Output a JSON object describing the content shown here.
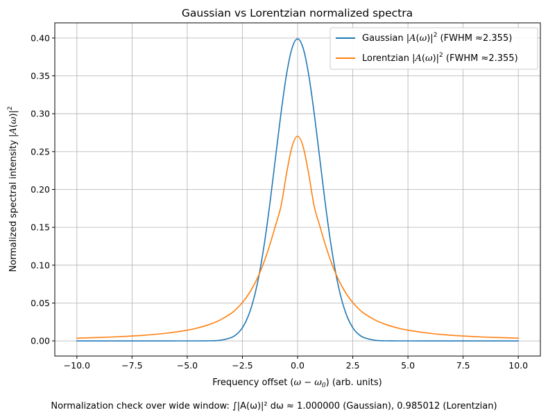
{
  "chart_data": {
    "type": "line",
    "title": "Gaussian vs Lorentzian normalized spectra",
    "xlabel_parts": [
      "Frequency offset (",
      "ω − ω",
      "0",
      ") (arb. units)"
    ],
    "ylabel_parts": [
      "Normalized spectral intensity |",
      "A",
      "(",
      "ω",
      ")|",
      "2"
    ],
    "xlim": [
      -11.0,
      11.0
    ],
    "ylim": [
      -0.02,
      0.42
    ],
    "xticks": [
      -10.0,
      -7.5,
      -5.0,
      -2.5,
      0.0,
      2.5,
      5.0,
      7.5,
      10.0
    ],
    "xtick_labels": [
      "−10.0",
      "−7.5",
      "−5.0",
      "−2.5",
      "0.0",
      "2.5",
      "5.0",
      "7.5",
      "10.0"
    ],
    "yticks": [
      0.0,
      0.05,
      0.1,
      0.15,
      0.2,
      0.25,
      0.3,
      0.35,
      0.4
    ],
    "ytick_labels": [
      "0.00",
      "0.05",
      "0.10",
      "0.15",
      "0.20",
      "0.25",
      "0.30",
      "0.35",
      "0.40"
    ],
    "grid": true,
    "legend_position": "top-right",
    "x": [
      -10,
      -9,
      -8,
      -7,
      -6,
      -5,
      -4.5,
      -4,
      -3.5,
      -3,
      -2.75,
      -2.5,
      -2.25,
      -2,
      -1.75,
      -1.5,
      -1.25,
      -1,
      -0.75,
      -0.5,
      -0.25,
      0,
      0.25,
      0.5,
      0.75,
      1,
      1.25,
      1.5,
      1.75,
      2,
      2.25,
      2.5,
      2.75,
      3,
      3.5,
      4,
      4.5,
      5,
      6,
      7,
      8,
      9,
      10
    ],
    "series": [
      {
        "name_parts": [
          "Gaussian |",
          "A",
          "(",
          "ω",
          ")|",
          "2",
          " (FWHM ",
          "≈",
          "2.355)"
        ],
        "color": "#1f77b4",
        "values": [
          0,
          0,
          0,
          0,
          0,
          1.5e-06,
          1.6e-05,
          0.000134,
          0.00087,
          0.00443,
          0.0091,
          0.0175,
          0.0317,
          0.054,
          0.0863,
          0.1295,
          0.1826,
          0.242,
          0.3011,
          0.3521,
          0.3867,
          0.3989,
          0.3867,
          0.3521,
          0.3011,
          0.242,
          0.1826,
          0.1295,
          0.0863,
          0.054,
          0.0317,
          0.0175,
          0.0091,
          0.00443,
          0.00087,
          0.000134,
          1.6e-05,
          1.5e-06,
          0,
          0,
          0,
          0,
          0
        ]
      },
      {
        "name_parts": [
          "Lorentzian |",
          "A",
          "(",
          "ω",
          ")|",
          "2",
          " (FWHM ",
          "≈",
          "2.355)"
        ],
        "color": "#ff7f0e",
        "values": [
          0.00365,
          0.00449,
          0.00566,
          0.00735,
          0.00995,
          0.01413,
          0.01733,
          0.02168,
          0.02777,
          0.03655,
          0.04286,
          0.05067,
          0.06038,
          0.07245,
          0.08745,
          0.10584,
          0.12771,
          0.15246,
          0.17811,
          0.2211,
          0.25662,
          0.27032,
          0.25662,
          0.2211,
          0.17811,
          0.15246,
          0.12771,
          0.10584,
          0.08745,
          0.07245,
          0.06038,
          0.05067,
          0.04286,
          0.03655,
          0.02777,
          0.02168,
          0.01733,
          0.01413,
          0.00995,
          0.00735,
          0.00566,
          0.00449,
          0.00365
        ]
      }
    ],
    "footnote": "Normalization check over wide window: ∫|A(ω)|² dω ≈ 1.000000 (Gaussian), 0.985012 (Lorentzian)"
  }
}
